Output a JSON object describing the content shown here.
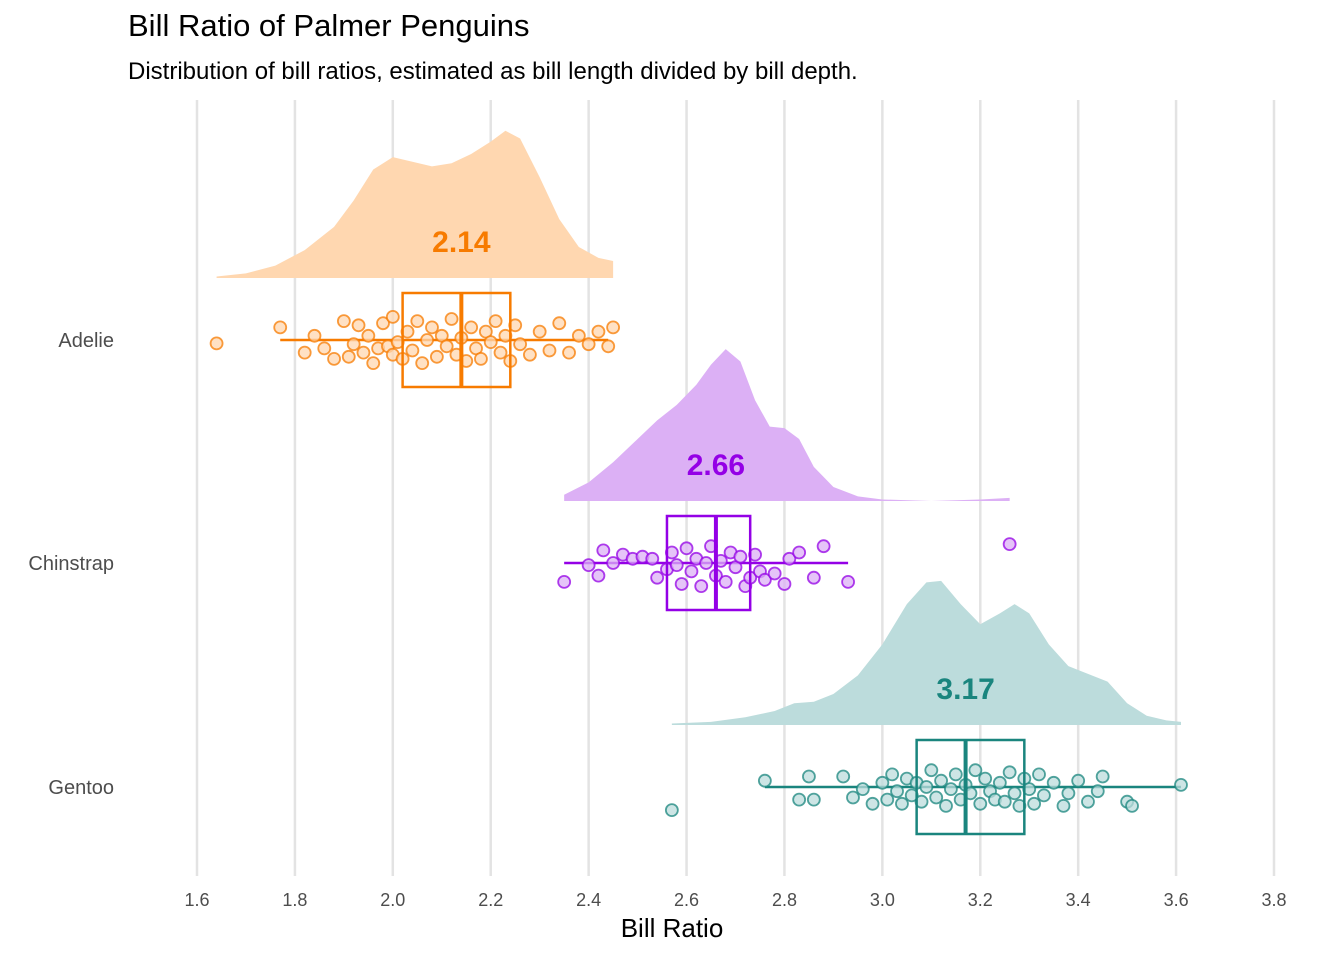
{
  "chart_data": {
    "type": "raincloud",
    "title": "Bill Ratio of Palmer Penguins",
    "subtitle": "Distribution of bill ratios, estimated as bill length divided by bill depth.",
    "xlabel": "Bill Ratio",
    "ylabel": "",
    "xlim": [
      1.6,
      3.8
    ],
    "xticks": [
      "1.6",
      "1.8",
      "2.0",
      "2.2",
      "2.4",
      "2.6",
      "2.8",
      "3.0",
      "3.2",
      "3.4",
      "3.6",
      "3.8"
    ],
    "grid": "vertical",
    "groups": [
      {
        "name": "Adelie",
        "color": "#f77b00",
        "fill": "#ffd7b0",
        "median_label": "2.14",
        "median": 2.14,
        "q1": 2.02,
        "q3": 2.24,
        "whisker_low": 1.77,
        "whisker_high": 2.44,
        "density": [
          [
            1.64,
            0.01
          ],
          [
            1.7,
            0.03
          ],
          [
            1.76,
            0.08
          ],
          [
            1.82,
            0.18
          ],
          [
            1.88,
            0.33
          ],
          [
            1.92,
            0.5
          ],
          [
            1.96,
            0.7
          ],
          [
            2.0,
            0.78
          ],
          [
            2.04,
            0.75
          ],
          [
            2.08,
            0.72
          ],
          [
            2.12,
            0.74
          ],
          [
            2.16,
            0.8
          ],
          [
            2.2,
            0.88
          ],
          [
            2.23,
            0.95
          ],
          [
            2.26,
            0.9
          ],
          [
            2.3,
            0.65
          ],
          [
            2.34,
            0.38
          ],
          [
            2.38,
            0.2
          ],
          [
            2.42,
            0.13
          ],
          [
            2.45,
            0.11
          ]
        ],
        "points": [
          [
            1.64,
            0.08
          ],
          [
            1.77,
            -0.3
          ],
          [
            1.82,
            0.3
          ],
          [
            1.84,
            -0.1
          ],
          [
            1.86,
            0.2
          ],
          [
            1.88,
            0.45
          ],
          [
            1.9,
            -0.45
          ],
          [
            1.91,
            0.4
          ],
          [
            1.92,
            0.1
          ],
          [
            1.93,
            -0.35
          ],
          [
            1.94,
            0.3
          ],
          [
            1.95,
            -0.1
          ],
          [
            1.96,
            0.55
          ],
          [
            1.97,
            0.2
          ],
          [
            1.98,
            -0.4
          ],
          [
            1.99,
            0.15
          ],
          [
            2.0,
            0.35
          ],
          [
            2.0,
            -0.55
          ],
          [
            2.01,
            0.05
          ],
          [
            2.02,
            0.45
          ],
          [
            2.03,
            -0.2
          ],
          [
            2.04,
            0.25
          ],
          [
            2.05,
            -0.45
          ],
          [
            2.06,
            0.55
          ],
          [
            2.07,
            0.0
          ],
          [
            2.08,
            -0.3
          ],
          [
            2.09,
            0.4
          ],
          [
            2.1,
            -0.1
          ],
          [
            2.11,
            0.15
          ],
          [
            2.12,
            -0.5
          ],
          [
            2.13,
            0.35
          ],
          [
            2.14,
            -0.05
          ],
          [
            2.15,
            0.5
          ],
          [
            2.16,
            -0.3
          ],
          [
            2.17,
            0.2
          ],
          [
            2.18,
            0.45
          ],
          [
            2.19,
            -0.2
          ],
          [
            2.2,
            0.05
          ],
          [
            2.21,
            -0.45
          ],
          [
            2.22,
            0.3
          ],
          [
            2.23,
            -0.1
          ],
          [
            2.24,
            0.5
          ],
          [
            2.25,
            -0.35
          ],
          [
            2.26,
            0.1
          ],
          [
            2.28,
            0.35
          ],
          [
            2.3,
            -0.2
          ],
          [
            2.32,
            0.25
          ],
          [
            2.34,
            -0.4
          ],
          [
            2.36,
            0.3
          ],
          [
            2.38,
            -0.1
          ],
          [
            2.4,
            0.1
          ],
          [
            2.42,
            -0.2
          ],
          [
            2.44,
            0.15
          ],
          [
            2.45,
            -0.3
          ]
        ]
      },
      {
        "name": "Chinstrap",
        "color": "#9400e6",
        "fill": "#dcb0f5",
        "median_label": "2.66",
        "median": 2.66,
        "q1": 2.56,
        "q3": 2.73,
        "whisker_low": 2.35,
        "whisker_high": 2.93,
        "density": [
          [
            2.35,
            0.04
          ],
          [
            2.4,
            0.12
          ],
          [
            2.45,
            0.25
          ],
          [
            2.5,
            0.4
          ],
          [
            2.54,
            0.52
          ],
          [
            2.58,
            0.62
          ],
          [
            2.62,
            0.75
          ],
          [
            2.65,
            0.88
          ],
          [
            2.68,
            0.98
          ],
          [
            2.71,
            0.9
          ],
          [
            2.74,
            0.65
          ],
          [
            2.77,
            0.48
          ],
          [
            2.8,
            0.47
          ],
          [
            2.83,
            0.4
          ],
          [
            2.86,
            0.22
          ],
          [
            2.9,
            0.09
          ],
          [
            2.95,
            0.03
          ],
          [
            3.0,
            0.01
          ],
          [
            3.1,
            0.0
          ],
          [
            3.2,
            0.01
          ],
          [
            3.26,
            0.02
          ]
        ],
        "points": [
          [
            2.35,
            0.45
          ],
          [
            2.4,
            0.05
          ],
          [
            2.42,
            0.3
          ],
          [
            2.43,
            -0.3
          ],
          [
            2.45,
            0.0
          ],
          [
            2.47,
            -0.2
          ],
          [
            2.49,
            -0.1
          ],
          [
            2.51,
            -0.15
          ],
          [
            2.53,
            -0.1
          ],
          [
            2.54,
            0.35
          ],
          [
            2.56,
            0.15
          ],
          [
            2.57,
            -0.25
          ],
          [
            2.58,
            0.05
          ],
          [
            2.59,
            0.5
          ],
          [
            2.6,
            -0.35
          ],
          [
            2.61,
            0.2
          ],
          [
            2.62,
            -0.1
          ],
          [
            2.63,
            0.55
          ],
          [
            2.64,
            0.0
          ],
          [
            2.65,
            -0.4
          ],
          [
            2.66,
            0.3
          ],
          [
            2.67,
            -0.05
          ],
          [
            2.68,
            0.45
          ],
          [
            2.69,
            -0.25
          ],
          [
            2.7,
            0.1
          ],
          [
            2.71,
            -0.15
          ],
          [
            2.72,
            0.55
          ],
          [
            2.73,
            0.35
          ],
          [
            2.74,
            -0.2
          ],
          [
            2.75,
            0.2
          ],
          [
            2.76,
            0.4
          ],
          [
            2.78,
            0.25
          ],
          [
            2.8,
            0.5
          ],
          [
            2.81,
            -0.1
          ],
          [
            2.83,
            -0.25
          ],
          [
            2.86,
            0.35
          ],
          [
            2.88,
            -0.4
          ],
          [
            2.93,
            0.45
          ],
          [
            3.26,
            -0.45
          ]
        ]
      },
      {
        "name": "Gentoo",
        "color": "#1a857e",
        "fill": "#bcdcdc",
        "median_label": "3.17",
        "median": 3.17,
        "q1": 3.07,
        "q3": 3.29,
        "whisker_low": 2.76,
        "whisker_high": 3.61,
        "density": [
          [
            2.57,
            0.01
          ],
          [
            2.65,
            0.02
          ],
          [
            2.72,
            0.05
          ],
          [
            2.78,
            0.09
          ],
          [
            2.82,
            0.14
          ],
          [
            2.86,
            0.15
          ],
          [
            2.9,
            0.2
          ],
          [
            2.95,
            0.32
          ],
          [
            3.0,
            0.52
          ],
          [
            3.05,
            0.78
          ],
          [
            3.09,
            0.92
          ],
          [
            3.12,
            0.93
          ],
          [
            3.16,
            0.78
          ],
          [
            3.2,
            0.65
          ],
          [
            3.24,
            0.72
          ],
          [
            3.27,
            0.78
          ],
          [
            3.3,
            0.72
          ],
          [
            3.34,
            0.52
          ],
          [
            3.38,
            0.38
          ],
          [
            3.42,
            0.33
          ],
          [
            3.46,
            0.28
          ],
          [
            3.5,
            0.14
          ],
          [
            3.54,
            0.06
          ],
          [
            3.58,
            0.03
          ],
          [
            3.61,
            0.02
          ]
        ],
        "points": [
          [
            2.57,
            0.55
          ],
          [
            2.76,
            -0.15
          ],
          [
            2.83,
            0.3
          ],
          [
            2.85,
            -0.25
          ],
          [
            2.86,
            0.3
          ],
          [
            2.92,
            -0.25
          ],
          [
            2.94,
            0.25
          ],
          [
            2.96,
            0.05
          ],
          [
            2.98,
            0.4
          ],
          [
            3.0,
            -0.1
          ],
          [
            3.01,
            0.3
          ],
          [
            3.02,
            -0.3
          ],
          [
            3.03,
            0.1
          ],
          [
            3.04,
            0.4
          ],
          [
            3.05,
            -0.2
          ],
          [
            3.06,
            0.2
          ],
          [
            3.07,
            -0.1
          ],
          [
            3.08,
            0.35
          ],
          [
            3.09,
            0.0
          ],
          [
            3.1,
            -0.4
          ],
          [
            3.11,
            0.25
          ],
          [
            3.12,
            -0.15
          ],
          [
            3.13,
            0.45
          ],
          [
            3.14,
            0.05
          ],
          [
            3.15,
            -0.3
          ],
          [
            3.16,
            0.3
          ],
          [
            3.17,
            -0.05
          ],
          [
            3.18,
            0.15
          ],
          [
            3.19,
            -0.4
          ],
          [
            3.2,
            0.4
          ],
          [
            3.21,
            -0.2
          ],
          [
            3.22,
            0.1
          ],
          [
            3.23,
            0.3
          ],
          [
            3.24,
            -0.1
          ],
          [
            3.25,
            0.35
          ],
          [
            3.26,
            -0.35
          ],
          [
            3.27,
            0.15
          ],
          [
            3.28,
            0.45
          ],
          [
            3.29,
            -0.2
          ],
          [
            3.3,
            0.05
          ],
          [
            3.31,
            0.4
          ],
          [
            3.32,
            -0.3
          ],
          [
            3.33,
            0.2
          ],
          [
            3.35,
            -0.1
          ],
          [
            3.37,
            0.45
          ],
          [
            3.38,
            0.15
          ],
          [
            3.4,
            -0.15
          ],
          [
            3.42,
            0.35
          ],
          [
            3.44,
            0.1
          ],
          [
            3.45,
            -0.25
          ],
          [
            3.5,
            0.35
          ],
          [
            3.51,
            0.45
          ],
          [
            3.61,
            -0.05
          ]
        ]
      }
    ]
  }
}
